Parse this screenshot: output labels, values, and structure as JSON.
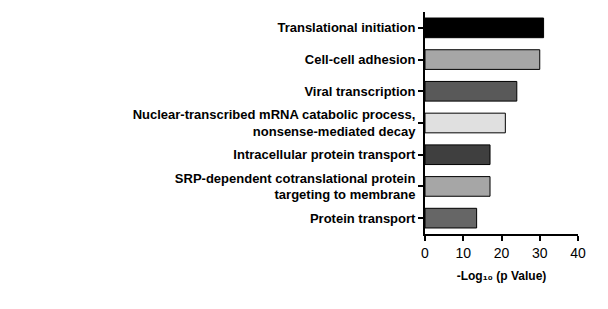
{
  "chart_data": {
    "type": "bar",
    "orientation": "horizontal",
    "x_label": "-Log₁₀ (p Value)",
    "categories": [
      "Translational initiation",
      "Cell-cell adhesion",
      "Viral transcription",
      "Nuclear-transcribed mRNA catabolic process,\nnonsense-mediated decay",
      "Intracellular protein transport",
      "SRP-dependent cotranslational protein\ntargeting to membrane",
      "Protein transport"
    ],
    "values": [
      31,
      30,
      24,
      21,
      17,
      17,
      13.5
    ],
    "colors": [
      "#000000",
      "#a6a6a6",
      "#595959",
      "#e0e0e0",
      "#3f3f3f",
      "#a6a6a6",
      "#666666"
    ],
    "xlim": [
      0,
      40
    ],
    "xticks": [
      0,
      10,
      20,
      30,
      40
    ],
    "grid": false
  }
}
